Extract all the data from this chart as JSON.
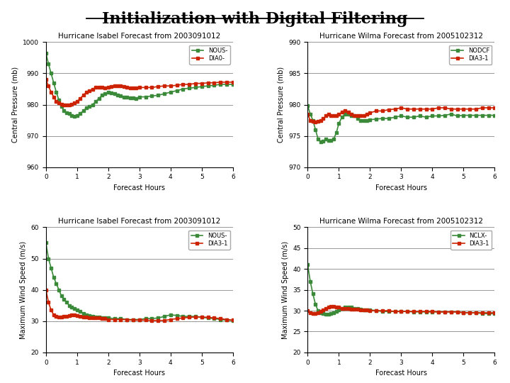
{
  "title": "Initialization with Digital Filtering",
  "title_fontsize": 16,
  "title_fontweight": "bold",
  "bg_color": "#ffffff",
  "subplot_bg": "#ffffff",
  "green_color": "#3a8a3a",
  "red_color": "#cc2200",
  "marker_size": 3,
  "line_width": 1.2,
  "isabel_pressure": {
    "title": "Hurricane Isabel Forecast from 2003091012",
    "ylabel": "Central Pressure (mb)",
    "xlabel": "Forecast Hours",
    "legend1": "NOUS-",
    "legend2": "DIA0-",
    "ylim": [
      960,
      1000
    ],
    "yticks": [
      960,
      970,
      980,
      990,
      1000
    ],
    "xlim": [
      0,
      6.0
    ],
    "xticks": [
      0.0,
      1.0,
      2.0,
      3.0,
      4.0,
      5.0,
      6.0
    ],
    "green_x": [
      0.0,
      0.083,
      0.167,
      0.25,
      0.333,
      0.417,
      0.5,
      0.583,
      0.667,
      0.75,
      0.833,
      0.917,
      1.0,
      1.1,
      1.2,
      1.3,
      1.4,
      1.5,
      1.6,
      1.7,
      1.8,
      1.9,
      2.0,
      2.1,
      2.2,
      2.3,
      2.4,
      2.5,
      2.6,
      2.7,
      2.8,
      2.9,
      3.0,
      3.2,
      3.4,
      3.6,
      3.8,
      4.0,
      4.2,
      4.4,
      4.6,
      4.8,
      5.0,
      5.2,
      5.4,
      5.6,
      5.8,
      6.0
    ],
    "green_y": [
      996.5,
      993,
      990,
      987,
      984,
      981.5,
      979.5,
      978,
      977.5,
      977.2,
      976.5,
      976.2,
      976.5,
      977.2,
      978,
      979,
      979.5,
      980,
      981,
      982,
      983,
      983.5,
      984,
      983.8,
      983.5,
      983,
      982.8,
      982.5,
      982.5,
      982.2,
      982.2,
      982,
      982.5,
      982.5,
      982.8,
      983,
      983.5,
      984,
      984.5,
      985,
      985.3,
      985.5,
      985.8,
      986,
      986.2,
      986.5,
      986.5,
      986.5
    ],
    "red_x": [
      0.0,
      0.083,
      0.167,
      0.25,
      0.333,
      0.417,
      0.5,
      0.583,
      0.667,
      0.75,
      0.833,
      0.917,
      1.0,
      1.1,
      1.2,
      1.3,
      1.4,
      1.5,
      1.6,
      1.7,
      1.8,
      1.9,
      2.0,
      2.1,
      2.2,
      2.3,
      2.4,
      2.5,
      2.6,
      2.7,
      2.8,
      2.9,
      3.0,
      3.2,
      3.4,
      3.6,
      3.8,
      4.0,
      4.2,
      4.4,
      4.6,
      4.8,
      5.0,
      5.2,
      5.4,
      5.6,
      5.8,
      6.0
    ],
    "red_y": [
      988,
      986,
      984,
      982.5,
      981,
      980.5,
      980.2,
      980.0,
      980.0,
      980.0,
      980.2,
      980.5,
      981,
      982,
      983,
      984,
      984.5,
      985,
      985.5,
      985.5,
      985.5,
      985.3,
      985.5,
      985.8,
      986,
      986,
      986,
      985.8,
      985.5,
      985.3,
      985.3,
      985.3,
      985.5,
      985.5,
      985.5,
      985.8,
      986,
      986,
      986.2,
      986.5,
      986.5,
      986.8,
      986.8,
      987,
      987,
      987.2,
      987.2,
      987.2
    ]
  },
  "wilma_pressure": {
    "title": "Hurricane Wilma Forecast from 2005102312",
    "ylabel": "Central Pressure (mb)",
    "xlabel": "Forecast Hours",
    "legend1": "NODCF",
    "legend2": "DIA3-1",
    "ylim": [
      970,
      990
    ],
    "yticks": [
      970,
      975,
      980,
      985,
      990
    ],
    "xlim": [
      0,
      6.0
    ],
    "xticks": [
      0.0,
      1.0,
      2.0,
      3.0,
      4.0,
      5.0,
      6.0
    ],
    "green_x": [
      0.0,
      0.083,
      0.167,
      0.25,
      0.333,
      0.417,
      0.5,
      0.583,
      0.667,
      0.75,
      0.833,
      0.917,
      1.0,
      1.1,
      1.2,
      1.3,
      1.4,
      1.5,
      1.6,
      1.7,
      1.8,
      1.9,
      2.0,
      2.2,
      2.4,
      2.6,
      2.8,
      3.0,
      3.2,
      3.4,
      3.6,
      3.8,
      4.0,
      4.2,
      4.4,
      4.6,
      4.8,
      5.0,
      5.2,
      5.4,
      5.6,
      5.8,
      6.0
    ],
    "green_y": [
      979.8,
      978.5,
      977.5,
      976,
      974.5,
      974.0,
      974.2,
      974.5,
      974.3,
      974.3,
      974.5,
      975.5,
      977,
      978,
      978.5,
      978.5,
      978.3,
      978.2,
      977.8,
      977.5,
      977.5,
      977.5,
      977.6,
      977.7,
      977.8,
      977.8,
      978.0,
      978.2,
      978.0,
      978.0,
      978.2,
      978.0,
      978.2,
      978.2,
      978.3,
      978.5,
      978.2,
      978.3,
      978.3,
      978.3,
      978.3,
      978.3,
      978.3
    ],
    "red_x": [
      0.0,
      0.083,
      0.167,
      0.25,
      0.333,
      0.417,
      0.5,
      0.583,
      0.667,
      0.75,
      0.833,
      0.917,
      1.0,
      1.1,
      1.2,
      1.3,
      1.4,
      1.5,
      1.6,
      1.7,
      1.8,
      1.9,
      2.0,
      2.2,
      2.4,
      2.6,
      2.8,
      3.0,
      3.2,
      3.4,
      3.6,
      3.8,
      4.0,
      4.2,
      4.4,
      4.6,
      4.8,
      5.0,
      5.2,
      5.4,
      5.6,
      5.8,
      6.0
    ],
    "red_y": [
      978.5,
      977.5,
      977.3,
      977.2,
      977.3,
      977.5,
      977.8,
      978.2,
      978.5,
      978.3,
      978.3,
      978.2,
      978.5,
      978.8,
      979,
      978.8,
      978.5,
      978.3,
      978.3,
      978.3,
      978.3,
      978.5,
      978.7,
      979.0,
      979.0,
      979.2,
      979.3,
      979.5,
      979.3,
      979.3,
      979.3,
      979.3,
      979.3,
      979.5,
      979.5,
      979.3,
      979.3,
      979.3,
      979.3,
      979.3,
      979.5,
      979.5,
      979.5
    ]
  },
  "isabel_wind": {
    "title": "Hurricane Isabel Forecast from 2003091012",
    "ylabel": "Maximum Wind Speed (m/s)",
    "xlabel": "Forecast Hours",
    "legend1": "NOUS-",
    "legend2": "DIA3-1",
    "ylim": [
      20,
      60
    ],
    "yticks": [
      20,
      30,
      40,
      50,
      60
    ],
    "xlim": [
      0,
      6.0
    ],
    "xticks": [
      0.0,
      1.0,
      2.0,
      3.0,
      4.0,
      5.0,
      6.0
    ],
    "green_x": [
      0.0,
      0.083,
      0.167,
      0.25,
      0.333,
      0.417,
      0.5,
      0.583,
      0.667,
      0.75,
      0.833,
      0.917,
      1.0,
      1.1,
      1.2,
      1.3,
      1.4,
      1.5,
      1.6,
      1.7,
      1.8,
      1.9,
      2.0,
      2.2,
      2.4,
      2.6,
      2.8,
      3.0,
      3.2,
      3.4,
      3.6,
      3.8,
      4.0,
      4.2,
      4.4,
      4.6,
      4.8,
      5.0,
      5.2,
      5.4,
      5.6,
      5.8,
      6.0
    ],
    "green_y": [
      55,
      50,
      47,
      44,
      42,
      40,
      38,
      37,
      36,
      35,
      34.5,
      34,
      33.5,
      33,
      32.5,
      32,
      31.8,
      31.5,
      31.3,
      31.2,
      31,
      31,
      31,
      30.8,
      30.8,
      30.5,
      30.5,
      30.5,
      30.8,
      30.8,
      31,
      31.5,
      32,
      31.8,
      31.5,
      31.5,
      31.5,
      31.2,
      31,
      30.8,
      30.5,
      30.3,
      30.2
    ],
    "red_x": [
      0.0,
      0.083,
      0.167,
      0.25,
      0.333,
      0.417,
      0.5,
      0.583,
      0.667,
      0.75,
      0.833,
      0.917,
      1.0,
      1.1,
      1.2,
      1.3,
      1.4,
      1.5,
      1.6,
      1.7,
      1.8,
      1.9,
      2.0,
      2.2,
      2.4,
      2.6,
      2.8,
      3.0,
      3.2,
      3.4,
      3.6,
      3.8,
      4.0,
      4.2,
      4.4,
      4.6,
      4.8,
      5.0,
      5.2,
      5.4,
      5.6,
      5.8,
      6.0
    ],
    "red_y": [
      40,
      36,
      33.5,
      32,
      31.5,
      31.3,
      31.3,
      31.5,
      31.5,
      31.8,
      32,
      32,
      31.8,
      31.5,
      31.3,
      31.2,
      31,
      31,
      31,
      31,
      30.8,
      30.8,
      30.5,
      30.5,
      30.5,
      30.5,
      30.3,
      30.3,
      30.3,
      30.2,
      30.2,
      30.2,
      30.5,
      30.8,
      31,
      31.2,
      31.3,
      31.3,
      31.2,
      31,
      30.8,
      30.5,
      30.3
    ]
  },
  "wilma_wind": {
    "title": "Hurricane Wilma Forecast from 2005102312",
    "ylabel": "Maximum Wind Speed (m/s)",
    "xlabel": "Forecast Hours",
    "legend1": "NCLX-",
    "legend2": "DIA3-1",
    "ylim": [
      20,
      50
    ],
    "yticks": [
      20,
      25,
      30,
      35,
      40,
      45,
      50
    ],
    "xlim": [
      0,
      6.0
    ],
    "xticks": [
      0.0,
      1.0,
      2.0,
      3.0,
      4.0,
      5.0,
      6.0
    ],
    "green_x": [
      0.0,
      0.083,
      0.167,
      0.25,
      0.333,
      0.417,
      0.5,
      0.583,
      0.667,
      0.75,
      0.833,
      0.917,
      1.0,
      1.1,
      1.2,
      1.3,
      1.4,
      1.5,
      1.6,
      1.7,
      1.8,
      1.9,
      2.0,
      2.2,
      2.4,
      2.6,
      2.8,
      3.0,
      3.2,
      3.4,
      3.6,
      3.8,
      4.0,
      4.2,
      4.4,
      4.6,
      4.8,
      5.0,
      5.2,
      5.4,
      5.6,
      5.8,
      6.0
    ],
    "green_y": [
      41,
      37,
      34,
      31.5,
      30,
      29.5,
      29.3,
      29.2,
      29.2,
      29.3,
      29.5,
      29.8,
      30.2,
      30.5,
      30.8,
      30.8,
      30.8,
      30.5,
      30.5,
      30.3,
      30.2,
      30.2,
      30.2,
      30.0,
      29.8,
      29.8,
      29.8,
      29.8,
      29.8,
      29.7,
      29.7,
      29.7,
      29.7,
      29.7,
      29.7,
      29.7,
      29.7,
      29.5,
      29.5,
      29.5,
      29.3,
      29.3,
      29.3
    ],
    "red_x": [
      0.0,
      0.083,
      0.167,
      0.25,
      0.333,
      0.417,
      0.5,
      0.583,
      0.667,
      0.75,
      0.833,
      0.917,
      1.0,
      1.1,
      1.2,
      1.3,
      1.4,
      1.5,
      1.6,
      1.7,
      1.8,
      1.9,
      2.0,
      2.2,
      2.4,
      2.6,
      2.8,
      3.0,
      3.2,
      3.4,
      3.6,
      3.8,
      4.0,
      4.2,
      4.4,
      4.6,
      4.8,
      5.0,
      5.2,
      5.4,
      5.6,
      5.8,
      6.0
    ],
    "red_y": [
      30,
      29.5,
      29.3,
      29.3,
      29.5,
      29.8,
      30.2,
      30.5,
      30.8,
      31.0,
      31.0,
      30.8,
      30.8,
      30.5,
      30.5,
      30.5,
      30.3,
      30.3,
      30.3,
      30.2,
      30.2,
      30.2,
      30.0,
      30.0,
      30.0,
      30.0,
      29.8,
      29.8,
      29.8,
      29.8,
      29.8,
      29.8,
      29.8,
      29.7,
      29.7,
      29.7,
      29.7,
      29.5,
      29.5,
      29.5,
      29.5,
      29.5,
      29.5
    ]
  }
}
